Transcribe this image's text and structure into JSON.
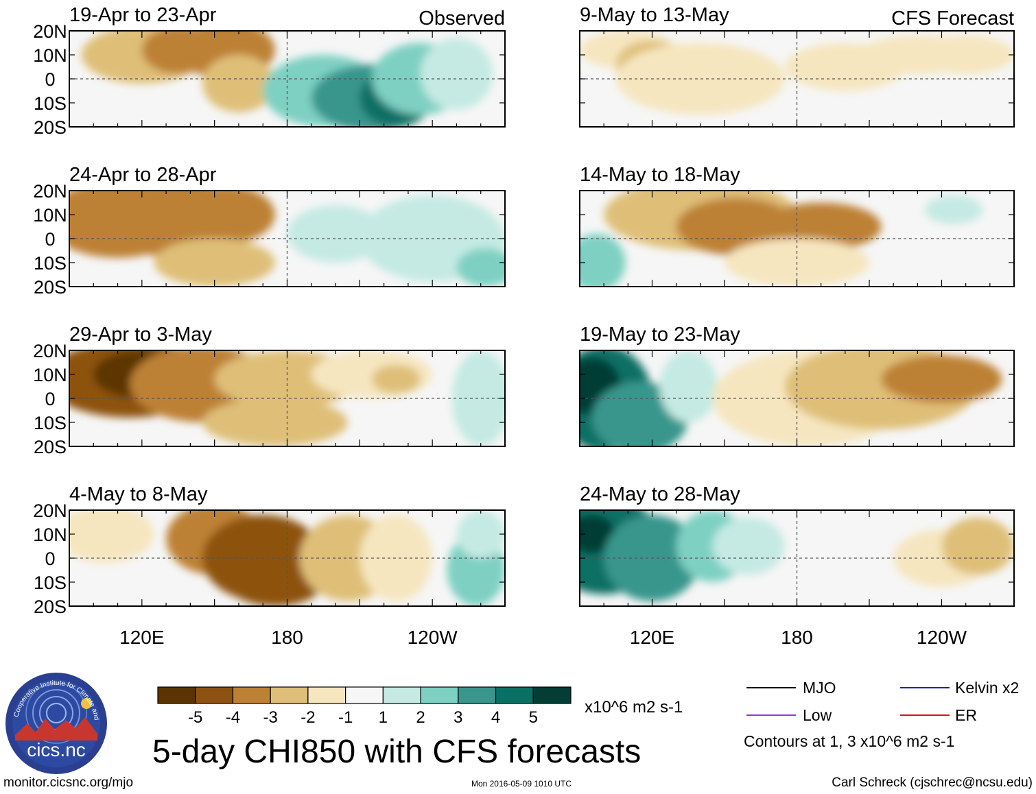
{
  "chart_data": {
    "type": "heatmap",
    "title": "5-day CHI850 with CFS forecasts",
    "units": "x10^6 m2 s-1",
    "column_labels": {
      "left": "Observed",
      "right": "CFS Forecast"
    },
    "lat_ticks": [
      "20N",
      "10N",
      "0",
      "10S",
      "20S"
    ],
    "lon_ticks": [
      "120E",
      "180",
      "120W"
    ],
    "lon_range": [
      90,
      270
    ],
    "lat_range": [
      -20,
      20
    ],
    "colorbar": {
      "labels": [
        "-5",
        "-4",
        "-3",
        "-2",
        "-1",
        "1",
        "2",
        "3",
        "4",
        "5"
      ],
      "colors": [
        "#5c3404",
        "#8d5211",
        "#bd8134",
        "#dfbf78",
        "#f6e6c0",
        "#f6f6f6",
        "#c5eae3",
        "#7ed0c3",
        "#38968d",
        "#087065",
        "#033d36"
      ]
    },
    "contour_legend": [
      {
        "label": "MJO",
        "color": "#000000"
      },
      {
        "label": "Kelvin x2",
        "color": "#0022cc"
      },
      {
        "label": "Low",
        "color": "#9933dd"
      },
      {
        "label": "ER",
        "color": "#dd1111"
      }
    ],
    "contour_note": "Contours at 1, 3 x10^6 m2 s-1",
    "panels": [
      {
        "label": "19-Apr to 23-Apr",
        "kind": "observed",
        "blobs": [
          [
            120,
            10,
            25,
            12,
            -2
          ],
          [
            135,
            12,
            15,
            10,
            -3
          ],
          [
            155,
            12,
            20,
            12,
            -3
          ],
          [
            160,
            -2,
            15,
            12,
            -2
          ],
          [
            195,
            -5,
            25,
            15,
            2
          ],
          [
            215,
            -8,
            25,
            14,
            3
          ],
          [
            225,
            -8,
            15,
            12,
            4
          ],
          [
            235,
            0,
            20,
            15,
            2
          ],
          [
            250,
            2,
            15,
            15,
            1
          ]
        ]
      },
      {
        "label": "24-Apr to 28-Apr",
        "kind": "observed",
        "blobs": [
          [
            110,
            8,
            30,
            16,
            -3
          ],
          [
            135,
            8,
            30,
            16,
            -3
          ],
          [
            155,
            10,
            20,
            12,
            -3
          ],
          [
            150,
            -10,
            25,
            10,
            -2
          ],
          [
            200,
            2,
            20,
            12,
            1
          ],
          [
            240,
            0,
            30,
            18,
            1
          ],
          [
            262,
            -12,
            12,
            8,
            2
          ]
        ]
      },
      {
        "label": "29-Apr to 3-May",
        "kind": "observed",
        "blobs": [
          [
            115,
            8,
            35,
            16,
            -4
          ],
          [
            120,
            10,
            20,
            10,
            -5
          ],
          [
            145,
            6,
            30,
            16,
            -3
          ],
          [
            180,
            8,
            30,
            12,
            -2
          ],
          [
            215,
            10,
            25,
            10,
            -1
          ],
          [
            225,
            8,
            10,
            6,
            -2
          ],
          [
            175,
            -10,
            30,
            10,
            -2
          ],
          [
            260,
            0,
            12,
            20,
            1
          ]
        ]
      },
      {
        "label": "4-May to 8-May",
        "kind": "observed",
        "blobs": [
          [
            105,
            10,
            20,
            12,
            -1
          ],
          [
            150,
            8,
            20,
            15,
            -3
          ],
          [
            170,
            0,
            25,
            18,
            -4
          ],
          [
            175,
            -10,
            20,
            10,
            -4
          ],
          [
            205,
            0,
            20,
            18,
            -2
          ],
          [
            225,
            0,
            15,
            18,
            -1
          ],
          [
            258,
            -5,
            12,
            15,
            2
          ],
          [
            260,
            10,
            10,
            10,
            1
          ]
        ]
      },
      {
        "label": "9-May to 13-May",
        "kind": "forecast",
        "blobs": [
          [
            110,
            12,
            20,
            8,
            -1
          ],
          [
            120,
            6,
            15,
            10,
            -2
          ],
          [
            140,
            0,
            35,
            15,
            -1
          ],
          [
            200,
            5,
            25,
            10,
            -1
          ],
          [
            230,
            10,
            25,
            8,
            -1
          ],
          [
            250,
            10,
            20,
            8,
            -1
          ]
        ]
      },
      {
        "label": "14-May to 18-May",
        "kind": "forecast",
        "blobs": [
          [
            97,
            -10,
            12,
            12,
            2
          ],
          [
            140,
            10,
            40,
            15,
            -2
          ],
          [
            155,
            5,
            25,
            12,
            -3
          ],
          [
            190,
            5,
            25,
            10,
            -3
          ],
          [
            180,
            -10,
            30,
            10,
            -1
          ],
          [
            245,
            12,
            12,
            6,
            1
          ]
        ]
      },
      {
        "label": "19-May to 23-May",
        "kind": "forecast",
        "blobs": [
          [
            100,
            0,
            20,
            22,
            4
          ],
          [
            95,
            5,
            12,
            12,
            5
          ],
          [
            115,
            -8,
            20,
            15,
            3
          ],
          [
            135,
            5,
            12,
            15,
            1
          ],
          [
            185,
            0,
            40,
            20,
            -1
          ],
          [
            215,
            5,
            40,
            18,
            -2
          ],
          [
            240,
            8,
            25,
            10,
            -3
          ]
        ]
      },
      {
        "label": "24-May to 28-May",
        "kind": "forecast",
        "blobs": [
          [
            100,
            5,
            25,
            20,
            4
          ],
          [
            95,
            10,
            10,
            8,
            5
          ],
          [
            120,
            0,
            20,
            18,
            3
          ],
          [
            145,
            5,
            15,
            15,
            2
          ],
          [
            160,
            5,
            15,
            12,
            1
          ],
          [
            240,
            0,
            20,
            12,
            -1
          ],
          [
            255,
            5,
            15,
            12,
            -2
          ]
        ]
      }
    ]
  },
  "footer": {
    "logo_arc_text": "Cooperative Institute for Climate and Satellites",
    "logo_text": "cics.nc",
    "website": "monitor.cicsnc.org/mjo",
    "timestamp": "Mon 2016-05-09 1010 UTC",
    "author": "Carl Schreck (cjschrec@ncsu.edu)"
  }
}
